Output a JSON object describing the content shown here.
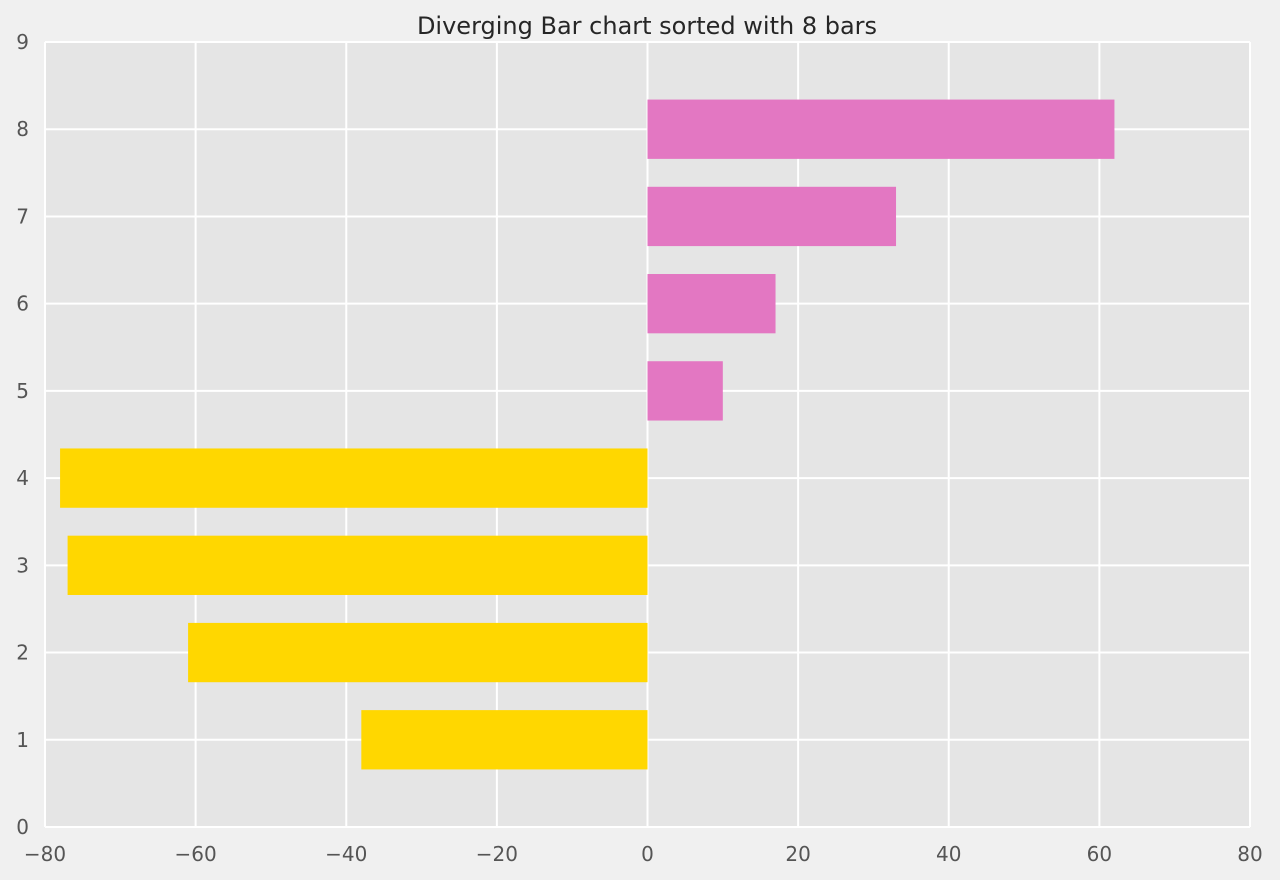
{
  "chart_data": {
    "type": "bar",
    "orientation": "horizontal",
    "title": "Diverging Bar chart sorted with 8 bars",
    "xlabel": "",
    "ylabel": "",
    "xlim": [
      -80,
      80
    ],
    "ylim": [
      0,
      9
    ],
    "x_ticks": [
      -80,
      -60,
      -40,
      -20,
      0,
      20,
      40,
      60,
      80
    ],
    "x_tick_labels": [
      "−80",
      "−60",
      "−40",
      "−20",
      "0",
      "20",
      "40",
      "60",
      "80"
    ],
    "y_ticks": [
      0,
      1,
      2,
      3,
      4,
      5,
      6,
      7,
      8,
      9
    ],
    "y_tick_labels": [
      "0",
      "1",
      "2",
      "3",
      "4",
      "5",
      "6",
      "7",
      "8",
      "9"
    ],
    "grid": true,
    "legend": "none",
    "categories": [
      1,
      2,
      3,
      4,
      5,
      6,
      7,
      8
    ],
    "values": [
      -38,
      -61,
      -77,
      -78,
      10,
      17,
      33,
      62
    ],
    "colors": {
      "negative": "#ffd700",
      "positive": "#e377c2",
      "plot_background": "#e5e5e5",
      "figure_background": "#f0f0f0",
      "grid": "#ffffff"
    }
  }
}
